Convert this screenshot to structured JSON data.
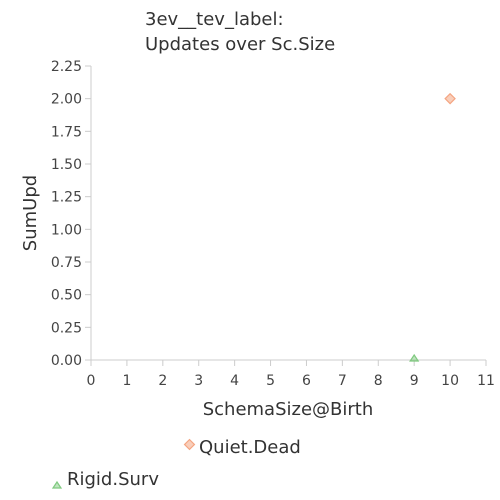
{
  "chart_data": {
    "type": "scatter",
    "title_lines": [
      "3ev__tev_label:",
      "Updates over Sc.Size"
    ],
    "xlabel": "SchemaSize@Birth",
    "ylabel": "SumUpd",
    "xlim": [
      0,
      11
    ],
    "ylim": [
      0,
      2.25
    ],
    "xticks": [
      "0",
      "1",
      "2",
      "3",
      "4",
      "5",
      "6",
      "7",
      "8",
      "9",
      "10",
      "11"
    ],
    "yticks": [
      "0.00",
      "0.25",
      "0.50",
      "0.75",
      "1.00",
      "1.25",
      "1.50",
      "1.75",
      "2.00",
      "2.25"
    ],
    "grid": false,
    "legend_position": "bottom",
    "series": [
      {
        "name": "Quiet.Dead",
        "marker": "diamond",
        "color": "#f4a582",
        "points": [
          {
            "x": 10,
            "y": 2.0
          }
        ]
      },
      {
        "name": "Rigid.Surv",
        "marker": "triangle",
        "color": "#7fc97f",
        "points": [
          {
            "x": 9,
            "y": 0.0
          }
        ]
      }
    ]
  }
}
